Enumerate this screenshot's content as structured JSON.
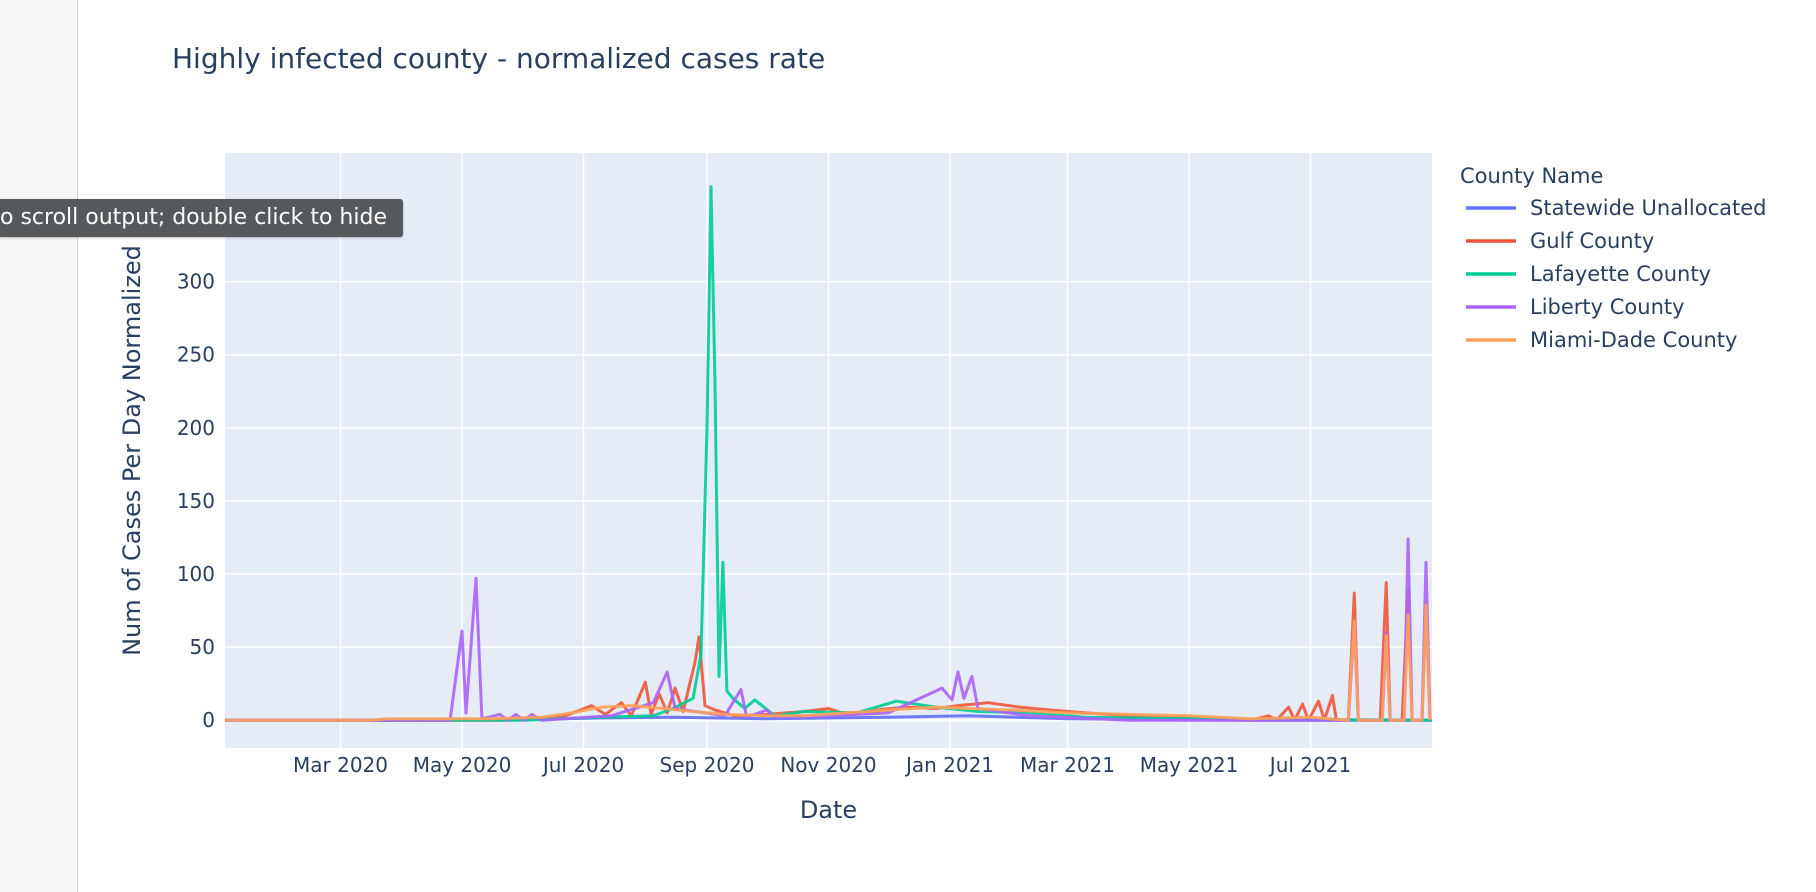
{
  "tooltip": {
    "text": "o scroll output; double click to hide"
  },
  "colors": {
    "plot_bg": "#e5ecf6",
    "grid": "#ffffff",
    "text": "#2a3f5f"
  },
  "chart_data": {
    "type": "line",
    "title": "Highly infected county - normalized cases rate",
    "xlabel": "Date",
    "ylabel": "Num of Cases Per Day Normalized",
    "xlim": [
      "2020-01-03",
      "2021-08-31"
    ],
    "ylim": [
      -19,
      388
    ],
    "y_ticks": [
      0,
      50,
      100,
      150,
      200,
      250,
      300
    ],
    "x_ticks": [
      {
        "date": "2020-03-01",
        "label": "Mar 2020"
      },
      {
        "date": "2020-05-01",
        "label": "May 2020"
      },
      {
        "date": "2020-07-01",
        "label": "Jul 2020"
      },
      {
        "date": "2020-09-01",
        "label": "Sep 2020"
      },
      {
        "date": "2020-11-01",
        "label": "Nov 2020"
      },
      {
        "date": "2021-01-01",
        "label": "Jan 2021"
      },
      {
        "date": "2021-03-01",
        "label": "Mar 2021"
      },
      {
        "date": "2021-05-01",
        "label": "May 2021"
      },
      {
        "date": "2021-07-01",
        "label": "Jul 2021"
      }
    ],
    "grid": true,
    "legend": {
      "title": "County Name",
      "position": "right"
    },
    "series": [
      {
        "name": "Statewide Unallocated",
        "color": "#636efa",
        "points": [
          [
            "2020-01-03",
            0
          ],
          [
            "2020-04-01",
            0
          ],
          [
            "2020-06-01",
            0.5
          ],
          [
            "2020-07-10",
            1.5
          ],
          [
            "2020-08-15",
            2
          ],
          [
            "2020-10-01",
            1
          ],
          [
            "2020-12-01",
            2
          ],
          [
            "2021-01-10",
            3
          ],
          [
            "2021-03-01",
            1
          ],
          [
            "2021-06-01",
            0
          ],
          [
            "2021-08-31",
            0
          ]
        ]
      },
      {
        "name": "Gulf County",
        "color": "#ef553b",
        "points": [
          [
            "2020-01-03",
            0
          ],
          [
            "2020-03-15",
            0
          ],
          [
            "2020-05-20",
            0
          ],
          [
            "2020-06-20",
            2
          ],
          [
            "2020-07-05",
            10
          ],
          [
            "2020-07-12",
            4
          ],
          [
            "2020-07-20",
            12
          ],
          [
            "2020-07-25",
            3
          ],
          [
            "2020-08-01",
            26
          ],
          [
            "2020-08-04",
            4
          ],
          [
            "2020-08-08",
            18
          ],
          [
            "2020-08-12",
            5
          ],
          [
            "2020-08-16",
            22
          ],
          [
            "2020-08-20",
            6
          ],
          [
            "2020-08-26",
            40
          ],
          [
            "2020-08-28",
            57
          ],
          [
            "2020-08-31",
            10
          ],
          [
            "2020-09-05",
            7
          ],
          [
            "2020-09-15",
            3
          ],
          [
            "2020-10-01",
            4
          ],
          [
            "2020-10-20",
            6
          ],
          [
            "2020-11-01",
            8
          ],
          [
            "2020-11-10",
            4
          ],
          [
            "2020-11-25",
            7
          ],
          [
            "2020-12-10",
            9
          ],
          [
            "2020-12-25",
            8
          ],
          [
            "2021-01-05",
            10
          ],
          [
            "2021-01-20",
            12
          ],
          [
            "2021-02-05",
            9
          ],
          [
            "2021-02-20",
            7
          ],
          [
            "2021-03-10",
            5
          ],
          [
            "2021-04-01",
            3
          ],
          [
            "2021-05-01",
            2
          ],
          [
            "2021-06-01",
            0
          ],
          [
            "2021-06-10",
            3
          ],
          [
            "2021-06-14",
            0
          ],
          [
            "2021-06-20",
            9
          ],
          [
            "2021-06-23",
            0
          ],
          [
            "2021-06-27",
            11
          ],
          [
            "2021-06-30",
            0
          ],
          [
            "2021-07-05",
            13
          ],
          [
            "2021-07-08",
            0
          ],
          [
            "2021-07-12",
            17
          ],
          [
            "2021-07-14",
            0
          ],
          [
            "2021-07-20",
            0
          ],
          [
            "2021-07-23",
            87
          ],
          [
            "2021-07-25",
            0
          ],
          [
            "2021-08-05",
            0
          ],
          [
            "2021-08-08",
            94
          ],
          [
            "2021-08-10",
            0
          ],
          [
            "2021-08-16",
            0
          ],
          [
            "2021-08-19",
            90
          ],
          [
            "2021-08-21",
            0
          ],
          [
            "2021-08-26",
            0
          ],
          [
            "2021-08-28",
            80
          ],
          [
            "2021-08-30",
            0
          ]
        ]
      },
      {
        "name": "Lafayette County",
        "color": "#00cc96",
        "points": [
          [
            "2020-01-03",
            0
          ],
          [
            "2020-06-01",
            0
          ],
          [
            "2020-07-10",
            2
          ],
          [
            "2020-08-05",
            3
          ],
          [
            "2020-08-15",
            8
          ],
          [
            "2020-08-25",
            15
          ],
          [
            "2020-08-29",
            45
          ],
          [
            "2020-09-01",
            200
          ],
          [
            "2020-09-03",
            365
          ],
          [
            "2020-09-05",
            230
          ],
          [
            "2020-09-07",
            30
          ],
          [
            "2020-09-09",
            108
          ],
          [
            "2020-09-11",
            20
          ],
          [
            "2020-09-14",
            15
          ],
          [
            "2020-09-20",
            8
          ],
          [
            "2020-09-25",
            14
          ],
          [
            "2020-10-05",
            3
          ],
          [
            "2020-10-20",
            6
          ],
          [
            "2020-11-15",
            5
          ],
          [
            "2020-12-05",
            13
          ],
          [
            "2020-12-25",
            9
          ],
          [
            "2021-01-15",
            6
          ],
          [
            "2021-02-10",
            5
          ],
          [
            "2021-03-10",
            2
          ],
          [
            "2021-05-01",
            1
          ],
          [
            "2021-08-31",
            0
          ]
        ]
      },
      {
        "name": "Liberty County",
        "color": "#ab63fa",
        "points": [
          [
            "2020-01-03",
            0
          ],
          [
            "2020-04-25",
            0
          ],
          [
            "2020-05-01",
            61
          ],
          [
            "2020-05-03",
            5
          ],
          [
            "2020-05-08",
            97
          ],
          [
            "2020-05-11",
            1
          ],
          [
            "2020-05-20",
            4
          ],
          [
            "2020-05-24",
            0
          ],
          [
            "2020-05-28",
            4
          ],
          [
            "2020-06-01",
            0
          ],
          [
            "2020-06-05",
            4
          ],
          [
            "2020-06-10",
            0
          ],
          [
            "2020-07-15",
            3
          ],
          [
            "2020-08-05",
            12
          ],
          [
            "2020-08-12",
            33
          ],
          [
            "2020-08-16",
            8
          ],
          [
            "2020-09-10",
            3
          ],
          [
            "2020-09-18",
            21
          ],
          [
            "2020-09-21",
            2
          ],
          [
            "2020-10-01",
            7
          ],
          [
            "2020-10-05",
            2
          ],
          [
            "2020-11-01",
            3
          ],
          [
            "2020-12-01",
            5
          ],
          [
            "2020-12-28",
            22
          ],
          [
            "2021-01-02",
            14
          ],
          [
            "2021-01-05",
            33
          ],
          [
            "2021-01-08",
            15
          ],
          [
            "2021-01-12",
            30
          ],
          [
            "2021-01-15",
            8
          ],
          [
            "2021-02-10",
            3
          ],
          [
            "2021-04-01",
            0
          ],
          [
            "2021-07-20",
            0
          ],
          [
            "2021-07-23",
            65
          ],
          [
            "2021-07-25",
            0
          ],
          [
            "2021-08-06",
            0
          ],
          [
            "2021-08-08",
            60
          ],
          [
            "2021-08-10",
            0
          ],
          [
            "2021-08-17",
            0
          ],
          [
            "2021-08-19",
            124
          ],
          [
            "2021-08-21",
            0
          ],
          [
            "2021-08-26",
            0
          ],
          [
            "2021-08-28",
            108
          ],
          [
            "2021-08-30",
            0
          ]
        ]
      },
      {
        "name": "Miami-Dade County",
        "color": "#ffa15a",
        "points": [
          [
            "2020-01-03",
            0
          ],
          [
            "2020-03-15",
            0
          ],
          [
            "2020-03-25",
            1
          ],
          [
            "2020-04-15",
            1
          ],
          [
            "2020-05-15",
            1
          ],
          [
            "2020-06-10",
            2
          ],
          [
            "2020-06-25",
            5
          ],
          [
            "2020-07-10",
            9
          ],
          [
            "2020-07-25",
            10
          ],
          [
            "2020-08-10",
            8
          ],
          [
            "2020-08-25",
            6
          ],
          [
            "2020-09-10",
            4
          ],
          [
            "2020-10-01",
            3
          ],
          [
            "2020-10-20",
            3
          ],
          [
            "2020-11-10",
            5
          ],
          [
            "2020-12-01",
            7
          ],
          [
            "2020-12-25",
            9
          ],
          [
            "2021-01-10",
            8
          ],
          [
            "2021-02-01",
            7
          ],
          [
            "2021-03-01",
            5
          ],
          [
            "2021-04-01",
            4
          ],
          [
            "2021-05-01",
            3
          ],
          [
            "2021-06-01",
            1
          ],
          [
            "2021-07-01",
            2
          ],
          [
            "2021-07-20",
            0
          ],
          [
            "2021-07-23",
            68
          ],
          [
            "2021-07-25",
            0
          ],
          [
            "2021-08-06",
            0
          ],
          [
            "2021-08-08",
            58
          ],
          [
            "2021-08-10",
            0
          ],
          [
            "2021-08-17",
            0
          ],
          [
            "2021-08-19",
            72
          ],
          [
            "2021-08-21",
            0
          ],
          [
            "2021-08-26",
            0
          ],
          [
            "2021-08-28",
            79
          ],
          [
            "2021-08-30",
            0
          ]
        ]
      }
    ]
  }
}
